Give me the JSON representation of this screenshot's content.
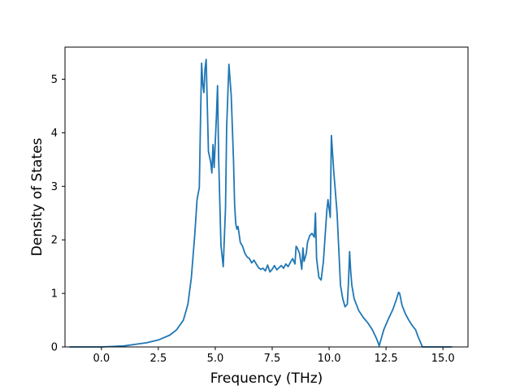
{
  "chart_data": {
    "type": "line",
    "title": "",
    "xlabel": "Frequency (THz)",
    "ylabel": "Density of States",
    "xlim": [
      -1.6,
      16.1
    ],
    "ylim": [
      0,
      5.6
    ],
    "xticks": [
      0.0,
      2.5,
      5.0,
      7.5,
      10.0,
      12.5,
      15.0
    ],
    "xtick_labels": [
      "0.0",
      "2.5",
      "5.0",
      "7.5",
      "10.0",
      "12.5",
      "15.0"
    ],
    "yticks": [
      0,
      1,
      2,
      3,
      4,
      5
    ],
    "ytick_labels": [
      "0",
      "1",
      "2",
      "3",
      "4",
      "5"
    ],
    "grid": false,
    "legend": "none",
    "line_color": "#1f77b4",
    "series": [
      {
        "x": [
          -1.4,
          -0.5,
          0.0,
          0.5,
          1.0,
          1.5,
          2.0,
          2.5,
          3.0,
          3.3,
          3.6,
          3.8,
          3.95,
          4.1,
          4.2,
          4.3,
          4.35,
          4.4,
          4.45,
          4.5,
          4.55,
          4.6,
          4.7,
          4.8,
          4.85,
          4.9,
          4.95,
          5.05,
          5.1,
          5.15,
          5.25,
          5.35,
          5.45,
          5.5,
          5.6,
          5.7,
          5.8,
          5.85,
          5.9,
          5.95,
          6.0,
          6.1,
          6.2,
          6.3,
          6.4,
          6.5,
          6.6,
          6.7,
          6.8,
          6.9,
          7.0,
          7.1,
          7.2,
          7.3,
          7.4,
          7.5,
          7.6,
          7.7,
          7.8,
          7.9,
          8.0,
          8.1,
          8.2,
          8.3,
          8.4,
          8.5,
          8.55,
          8.6,
          8.7,
          8.8,
          8.85,
          8.9,
          9.0,
          9.05,
          9.15,
          9.25,
          9.35,
          9.4,
          9.45,
          9.55,
          9.65,
          9.75,
          9.9,
          9.95,
          10.05,
          10.1,
          10.2,
          10.35,
          10.5,
          10.6,
          10.7,
          10.8,
          10.85,
          10.9,
          10.95,
          11.0,
          11.1,
          11.3,
          11.5,
          11.7,
          11.9,
          12.1,
          12.2,
          12.4,
          12.6,
          12.8,
          12.95,
          13.05,
          13.1,
          13.2,
          13.35,
          13.5,
          13.65,
          13.8,
          13.9,
          14.1,
          14.5,
          15.0,
          15.4
        ],
        "y": [
          0.0,
          0.0,
          0.0,
          0.01,
          0.02,
          0.05,
          0.08,
          0.13,
          0.22,
          0.32,
          0.5,
          0.8,
          1.3,
          2.1,
          2.75,
          2.98,
          4.2,
          5.3,
          4.9,
          4.75,
          5.2,
          5.37,
          3.65,
          3.45,
          3.25,
          3.78,
          3.35,
          4.3,
          4.88,
          3.5,
          1.9,
          1.5,
          2.6,
          4.1,
          5.28,
          4.7,
          3.5,
          2.65,
          2.3,
          2.2,
          2.25,
          1.95,
          1.88,
          1.75,
          1.68,
          1.65,
          1.57,
          1.62,
          1.55,
          1.48,
          1.45,
          1.47,
          1.42,
          1.53,
          1.4,
          1.45,
          1.52,
          1.44,
          1.48,
          1.52,
          1.47,
          1.55,
          1.5,
          1.58,
          1.65,
          1.55,
          1.88,
          1.85,
          1.75,
          1.45,
          1.85,
          1.6,
          1.75,
          1.95,
          2.08,
          2.12,
          2.05,
          2.5,
          1.65,
          1.3,
          1.25,
          1.6,
          2.55,
          2.75,
          2.42,
          3.95,
          3.3,
          2.5,
          1.15,
          0.9,
          0.75,
          0.8,
          1.2,
          1.78,
          1.4,
          1.15,
          0.9,
          0.68,
          0.55,
          0.45,
          0.32,
          0.14,
          0.02,
          0.32,
          0.52,
          0.7,
          0.88,
          1.02,
          1.0,
          0.78,
          0.62,
          0.5,
          0.4,
          0.32,
          0.2,
          0.0,
          0.0,
          0.0,
          0.0
        ]
      }
    ]
  }
}
